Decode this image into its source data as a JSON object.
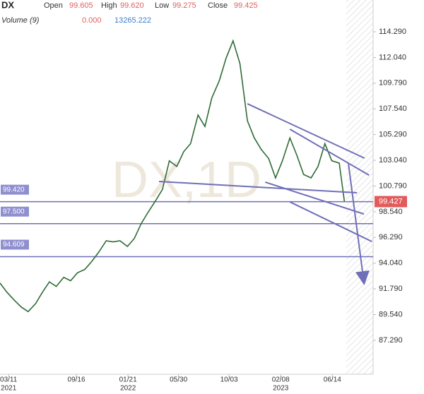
{
  "chart_data": {
    "type": "line",
    "title": "DX",
    "watermark": "DX,1D",
    "legend_items": [
      {
        "label": "Open",
        "value": "99.605"
      },
      {
        "label": "High",
        "value": "99.620"
      },
      {
        "label": "Low",
        "value": "99.275"
      },
      {
        "label": "Close",
        "value": "99.425"
      }
    ],
    "volume_label": "Volume (9)",
    "volume_values": [
      "0.000",
      "13265.222"
    ],
    "x": [
      0,
      12,
      25,
      37,
      49,
      62,
      74,
      86,
      98,
      111,
      123,
      135,
      148,
      160,
      172,
      185,
      197,
      209,
      222,
      234,
      246,
      258,
      271,
      283,
      295,
      308,
      320,
      332,
      345,
      357,
      369,
      382,
      394,
      406,
      418,
      431,
      443,
      455,
      468,
      480,
      492,
      505,
      517,
      529,
      542,
      554,
      566,
      578,
      591,
      600
    ],
    "series": [
      {
        "name": "DX",
        "color": "#2f6b35",
        "values": [
          92.3,
          91.5,
          90.8,
          90.2,
          89.8,
          90.5,
          91.5,
          92.4,
          92.0,
          92.8,
          92.5,
          93.2,
          93.5,
          94.2,
          95.0,
          96.0,
          95.9,
          96.0,
          95.5,
          96.2,
          97.5,
          98.5,
          99.5,
          100.5,
          103.0,
          102.5,
          103.8,
          104.5,
          107.0,
          106.0,
          108.5,
          110.0,
          112.0,
          113.5,
          111.5,
          106.5,
          105.0,
          104.0,
          103.2,
          101.5,
          103.0,
          105.0,
          103.5,
          101.8,
          101.5,
          102.5,
          104.5,
          103.0,
          102.8,
          99.43
        ]
      }
    ],
    "xlim": [
      0,
      650
    ],
    "xticks": [
      {
        "value": 15,
        "label": "03/11"
      },
      {
        "value": 133,
        "label": "09/16"
      },
      {
        "value": 223,
        "label": "01/21"
      },
      {
        "value": 311,
        "label": "05/30"
      },
      {
        "value": 399,
        "label": "10/03"
      },
      {
        "value": 489,
        "label": "02/08"
      },
      {
        "value": 579,
        "label": "06/14"
      }
    ],
    "x_year_labels": [
      {
        "value": 15,
        "label": "2021"
      },
      {
        "value": 223,
        "label": "2022"
      },
      {
        "value": 489,
        "label": "2023"
      }
    ],
    "ylim": [
      84.32,
      117.07
    ],
    "yticks": [
      {
        "value": 114.29,
        "label": "114.290"
      },
      {
        "value": 112.04,
        "label": "112.040"
      },
      {
        "value": 109.79,
        "label": "109.790"
      },
      {
        "value": 107.54,
        "label": "107.540"
      },
      {
        "value": 105.29,
        "label": "105.290"
      },
      {
        "value": 103.04,
        "label": "103.040"
      },
      {
        "value": 100.79,
        "label": "100.790"
      },
      {
        "value": 98.54,
        "label": "98.540"
      },
      {
        "value": 96.29,
        "label": "96.290"
      },
      {
        "value": 94.04,
        "label": "94.040"
      },
      {
        "value": 91.79,
        "label": "91.790"
      },
      {
        "value": 89.54,
        "label": "89.540"
      },
      {
        "value": 87.29,
        "label": "87.290"
      }
    ],
    "levels": [
      {
        "value": 99.42,
        "label": "99.420"
      },
      {
        "value": 97.5,
        "label": "97.500"
      },
      {
        "value": 94.609,
        "label": "94.609"
      }
    ],
    "level_color": "#6f6fb8",
    "last_price": {
      "value": 99.427,
      "label": "99.427"
    },
    "last_color": "#e25b5b",
    "trendlines": [
      [
        431,
        107.99,
        635,
        103.23
      ],
      [
        505,
        105.76,
        643,
        101.74
      ],
      [
        277,
        101.19,
        622,
        100.2
      ],
      [
        462,
        101.13,
        634,
        98.34
      ],
      [
        505,
        99.4,
        648,
        95.93
      ]
    ],
    "arrow": [
      607,
      102.73,
      634,
      92.35
    ]
  }
}
